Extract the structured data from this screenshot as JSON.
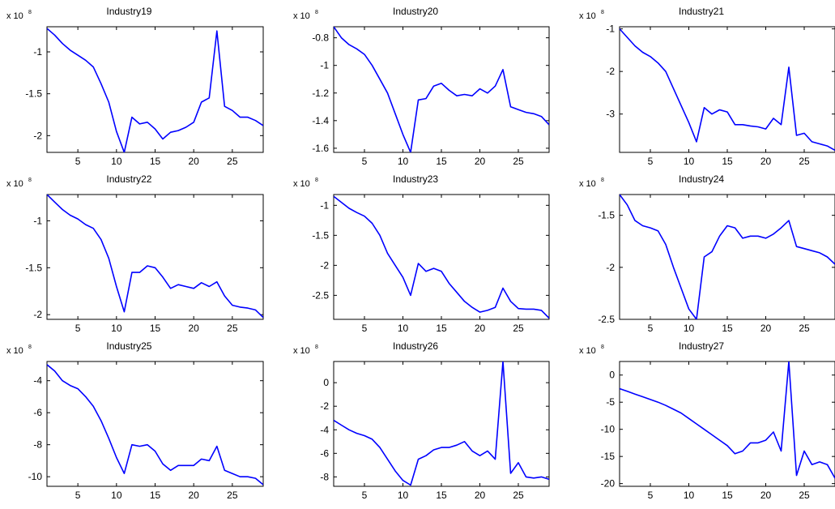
{
  "chart_data": [
    {
      "type": "line",
      "title": "Industry19",
      "exponent_label": "x 10",
      "exponent_power": "8",
      "color": "#0000ff",
      "xlim": [
        1,
        29
      ],
      "ylim": [
        -2.2,
        -0.7
      ],
      "xticks": [
        5,
        10,
        15,
        20,
        25
      ],
      "yticks": [
        -2,
        -1.5,
        -1
      ],
      "ytick_labels": [
        "-2",
        "-1.5",
        "-1"
      ],
      "x": [
        1,
        2,
        3,
        4,
        5,
        6,
        7,
        8,
        9,
        10,
        11,
        12,
        13,
        14,
        15,
        16,
        17,
        18,
        19,
        20,
        21,
        22,
        23,
        24,
        25,
        26,
        27,
        28,
        29
      ],
      "values": [
        -0.72,
        -0.8,
        -0.9,
        -0.98,
        -1.04,
        -1.1,
        -1.18,
        -1.38,
        -1.6,
        -1.95,
        -2.2,
        -1.78,
        -1.86,
        -1.84,
        -1.92,
        -2.04,
        -1.96,
        -1.94,
        -1.9,
        -1.84,
        -1.6,
        -1.55,
        -0.75,
        -1.65,
        -1.7,
        -1.78,
        -1.78,
        -1.82,
        -1.88
      ]
    },
    {
      "type": "line",
      "title": "Industry20",
      "exponent_label": "x 10",
      "exponent_power": "8",
      "color": "#0000ff",
      "xlim": [
        1,
        29
      ],
      "ylim": [
        -1.63,
        -0.72
      ],
      "xticks": [
        5,
        10,
        15,
        20,
        25
      ],
      "yticks": [
        -1.6,
        -1.4,
        -1.2,
        -1,
        -0.8
      ],
      "ytick_labels": [
        "-1.6",
        "-1.4",
        "-1.2",
        "-1",
        "-0.8"
      ],
      "x": [
        1,
        2,
        3,
        4,
        5,
        6,
        7,
        8,
        9,
        10,
        11,
        12,
        13,
        14,
        15,
        16,
        17,
        18,
        19,
        20,
        21,
        22,
        23,
        24,
        25,
        26,
        27,
        28,
        29
      ],
      "values": [
        -0.72,
        -0.8,
        -0.85,
        -0.88,
        -0.92,
        -1.0,
        -1.1,
        -1.2,
        -1.35,
        -1.5,
        -1.63,
        -1.25,
        -1.24,
        -1.15,
        -1.13,
        -1.18,
        -1.22,
        -1.21,
        -1.22,
        -1.17,
        -1.2,
        -1.15,
        -1.03,
        -1.3,
        -1.32,
        -1.34,
        -1.35,
        -1.37,
        -1.43
      ]
    },
    {
      "type": "line",
      "title": "Industry21",
      "exponent_label": "x 10",
      "exponent_power": "8",
      "color": "#0000ff",
      "xlim": [
        1,
        29
      ],
      "ylim": [
        -3.9,
        -0.95
      ],
      "xticks": [
        5,
        10,
        15,
        20,
        25
      ],
      "yticks": [
        -3,
        -2,
        -1
      ],
      "ytick_labels": [
        "-3",
        "-2",
        "-1"
      ],
      "x": [
        1,
        2,
        3,
        4,
        5,
        6,
        7,
        8,
        9,
        10,
        11,
        12,
        13,
        14,
        15,
        16,
        17,
        18,
        19,
        20,
        21,
        22,
        23,
        24,
        25,
        26,
        27,
        28,
        29
      ],
      "values": [
        -1.0,
        -1.2,
        -1.4,
        -1.55,
        -1.65,
        -1.8,
        -2.0,
        -2.4,
        -2.8,
        -3.2,
        -3.65,
        -2.85,
        -3.0,
        -2.9,
        -2.95,
        -3.25,
        -3.25,
        -3.28,
        -3.3,
        -3.35,
        -3.1,
        -3.25,
        -1.9,
        -3.5,
        -3.45,
        -3.65,
        -3.7,
        -3.75,
        -3.85
      ]
    },
    {
      "type": "line",
      "title": "Industry22",
      "exponent_label": "x 10",
      "exponent_power": "8",
      "color": "#0000ff",
      "xlim": [
        1,
        29
      ],
      "ylim": [
        -2.05,
        -0.72
      ],
      "xticks": [
        5,
        10,
        15,
        20,
        25
      ],
      "yticks": [
        -2,
        -1.5,
        -1
      ],
      "ytick_labels": [
        "-2",
        "-1.5",
        "-1"
      ],
      "x": [
        1,
        2,
        3,
        4,
        5,
        6,
        7,
        8,
        9,
        10,
        11,
        12,
        13,
        14,
        15,
        16,
        17,
        18,
        19,
        20,
        21,
        22,
        23,
        24,
        25,
        26,
        27,
        28,
        29
      ],
      "values": [
        -0.72,
        -0.8,
        -0.88,
        -0.94,
        -0.98,
        -1.04,
        -1.08,
        -1.2,
        -1.4,
        -1.7,
        -1.97,
        -1.55,
        -1.55,
        -1.48,
        -1.5,
        -1.6,
        -1.72,
        -1.68,
        -1.7,
        -1.72,
        -1.66,
        -1.7,
        -1.65,
        -1.8,
        -1.9,
        -1.92,
        -1.93,
        -1.95,
        -2.03
      ]
    },
    {
      "type": "line",
      "title": "Industry23",
      "exponent_label": "x 10",
      "exponent_power": "8",
      "color": "#0000ff",
      "xlim": [
        1,
        29
      ],
      "ylim": [
        -2.9,
        -0.82
      ],
      "xticks": [
        5,
        10,
        15,
        20,
        25
      ],
      "yticks": [
        -2.5,
        -2,
        -1.5,
        -1
      ],
      "ytick_labels": [
        "-2.5",
        "-2",
        "-1.5",
        "-1"
      ],
      "x": [
        1,
        2,
        3,
        4,
        5,
        6,
        7,
        8,
        9,
        10,
        11,
        12,
        13,
        14,
        15,
        16,
        17,
        18,
        19,
        20,
        21,
        22,
        23,
        24,
        25,
        26,
        27,
        28,
        29
      ],
      "values": [
        -0.85,
        -0.95,
        -1.05,
        -1.12,
        -1.18,
        -1.3,
        -1.5,
        -1.8,
        -2.0,
        -2.2,
        -2.5,
        -1.97,
        -2.1,
        -2.05,
        -2.1,
        -2.3,
        -2.45,
        -2.6,
        -2.7,
        -2.78,
        -2.75,
        -2.7,
        -2.38,
        -2.6,
        -2.72,
        -2.73,
        -2.73,
        -2.75,
        -2.88
      ]
    },
    {
      "type": "line",
      "title": "Industry24",
      "exponent_label": "x 10",
      "exponent_power": "8",
      "color": "#0000ff",
      "xlim": [
        1,
        29
      ],
      "ylim": [
        -2.5,
        -1.3
      ],
      "xticks": [
        5,
        10,
        15,
        20,
        25
      ],
      "yticks": [
        -2.5,
        -2,
        -1.5
      ],
      "ytick_labels": [
        "-2.5",
        "-2",
        "-1.5"
      ],
      "x": [
        1,
        2,
        3,
        4,
        5,
        6,
        7,
        8,
        9,
        10,
        11,
        12,
        13,
        14,
        15,
        16,
        17,
        18,
        19,
        20,
        21,
        22,
        23,
        24,
        25,
        26,
        27,
        28,
        29
      ],
      "values": [
        -1.3,
        -1.4,
        -1.55,
        -1.6,
        -1.62,
        -1.65,
        -1.78,
        -2.0,
        -2.2,
        -2.4,
        -2.5,
        -1.9,
        -1.85,
        -1.7,
        -1.6,
        -1.62,
        -1.72,
        -1.7,
        -1.7,
        -1.72,
        -1.68,
        -1.62,
        -1.55,
        -1.8,
        -1.82,
        -1.84,
        -1.86,
        -1.9,
        -1.97
      ]
    },
    {
      "type": "line",
      "title": "Industry25",
      "exponent_label": "x 10",
      "exponent_power": "8",
      "color": "#0000ff",
      "xlim": [
        1,
        29
      ],
      "ylim": [
        -10.6,
        -2.8
      ],
      "xticks": [
        5,
        10,
        15,
        20,
        25
      ],
      "yticks": [
        -10,
        -8,
        -6,
        -4
      ],
      "ytick_labels": [
        "-10",
        "-8",
        "-6",
        "-4"
      ],
      "x": [
        1,
        2,
        3,
        4,
        5,
        6,
        7,
        8,
        9,
        10,
        11,
        12,
        13,
        14,
        15,
        16,
        17,
        18,
        19,
        20,
        21,
        22,
        23,
        24,
        25,
        26,
        27,
        28,
        29
      ],
      "values": [
        -3.0,
        -3.4,
        -4.0,
        -4.3,
        -4.5,
        -5.0,
        -5.6,
        -6.5,
        -7.6,
        -8.8,
        -9.8,
        -8.0,
        -8.1,
        -8.0,
        -8.4,
        -9.2,
        -9.6,
        -9.3,
        -9.3,
        -9.3,
        -8.9,
        -9.0,
        -8.1,
        -9.6,
        -9.8,
        -10.0,
        -10.0,
        -10.1,
        -10.5
      ]
    },
    {
      "type": "line",
      "title": "Industry26",
      "exponent_label": "x 10",
      "exponent_power": "8",
      "color": "#0000ff",
      "xlim": [
        1,
        29
      ],
      "ylim": [
        -8.8,
        1.8
      ],
      "xticks": [
        5,
        10,
        15,
        20,
        25
      ],
      "yticks": [
        -8,
        -6,
        -4,
        -2,
        0
      ],
      "ytick_labels": [
        "-8",
        "-6",
        "-4",
        "-2",
        "0"
      ],
      "x": [
        1,
        2,
        3,
        4,
        5,
        6,
        7,
        8,
        9,
        10,
        11,
        12,
        13,
        14,
        15,
        16,
        17,
        18,
        19,
        20,
        21,
        22,
        23,
        24,
        25,
        26,
        27,
        28,
        29
      ],
      "values": [
        -3.2,
        -3.6,
        -4.0,
        -4.3,
        -4.5,
        -4.8,
        -5.5,
        -6.5,
        -7.5,
        -8.3,
        -8.7,
        -6.5,
        -6.2,
        -5.7,
        -5.5,
        -5.5,
        -5.3,
        -5.0,
        -5.8,
        -6.2,
        -5.8,
        -6.5,
        1.8,
        -7.7,
        -6.8,
        -8.0,
        -8.1,
        -8.0,
        -8.2
      ]
    },
    {
      "type": "line",
      "title": "Industry27",
      "exponent_label": "x 10",
      "exponent_power": "8",
      "color": "#0000ff",
      "xlim": [
        1,
        29
      ],
      "ylim": [
        -20.5,
        2.5
      ],
      "xticks": [
        5,
        10,
        15,
        20,
        25
      ],
      "yticks": [
        -20,
        -15,
        -10,
        -5,
        0
      ],
      "ytick_labels": [
        "-20",
        "-15",
        "-10",
        "-5",
        "0"
      ],
      "x": [
        1,
        2,
        3,
        4,
        5,
        6,
        7,
        8,
        9,
        10,
        11,
        12,
        13,
        14,
        15,
        16,
        17,
        18,
        19,
        20,
        21,
        22,
        23,
        24,
        25,
        26,
        27,
        28,
        29
      ],
      "values": [
        -2.5,
        -3.0,
        -3.5,
        -4.0,
        -4.5,
        -5.0,
        -5.6,
        -6.3,
        -7.0,
        -8.0,
        -9.0,
        -10.0,
        -11.0,
        -12.0,
        -13.0,
        -14.5,
        -14.0,
        -12.5,
        -12.5,
        -12.0,
        -10.5,
        -14.0,
        2.5,
        -18.5,
        -14.0,
        -16.5,
        -16.0,
        -16.5,
        -19.0
      ]
    }
  ]
}
